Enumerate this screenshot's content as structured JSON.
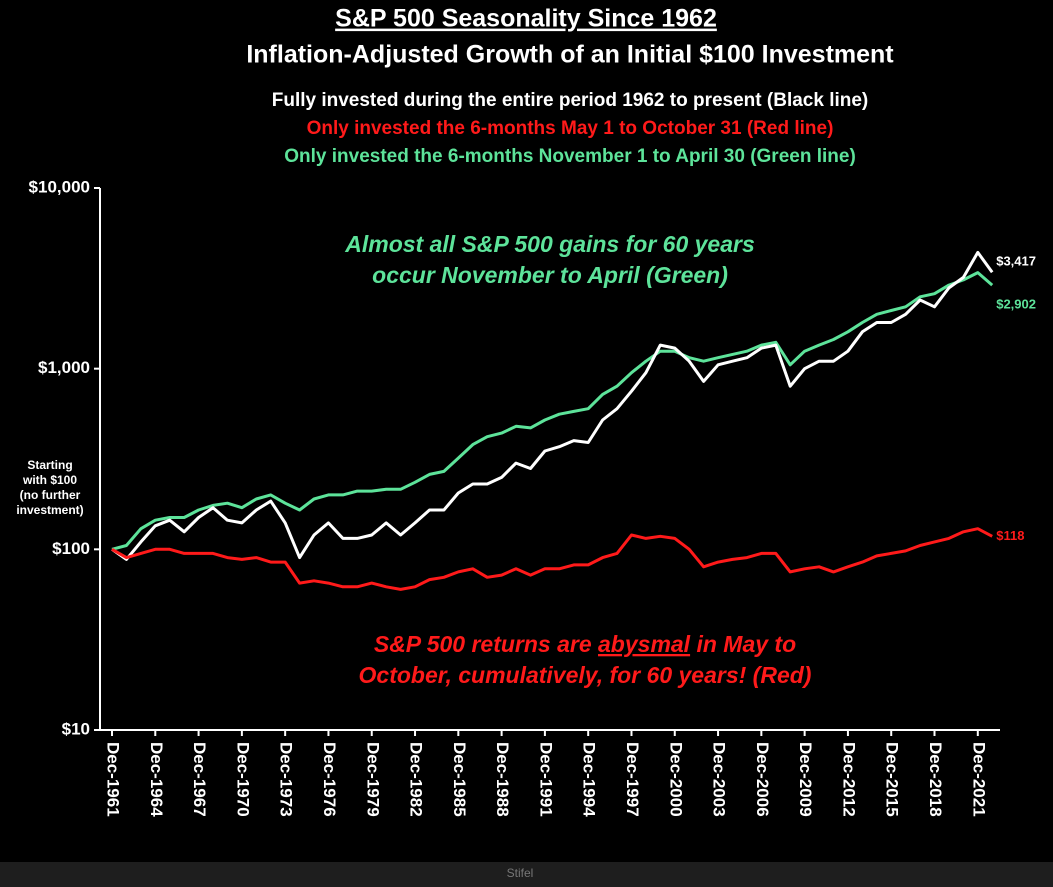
{
  "chart_data": {
    "type": "line",
    "title": "S&P 500 Seasonality Since 1962",
    "subtitle": "Inflation-Adjusted Growth of an Initial $100 Investment",
    "side_note": [
      "Starting",
      "with $100",
      "(no further",
      "investment)"
    ],
    "annotations": [
      {
        "color": "#5de39a",
        "lines": [
          [
            "Almost all S&P 500 gains for 60 years"
          ],
          [
            "occur November to April (Green)"
          ]
        ]
      },
      {
        "color": "#ff1a1a",
        "lines": [
          [
            "S&P 500 returns are ",
            "abysmal",
            " in May to"
          ],
          [
            "October, cumulatively, for 60 years! (Red)"
          ]
        ],
        "underline": [
          0,
          1
        ]
      }
    ],
    "footer": "Stifel",
    "log_scale": true,
    "ylim": [
      10,
      10000
    ],
    "yticks": [
      {
        "value": 10,
        "label": "$10"
      },
      {
        "value": 100,
        "label": "$100"
      },
      {
        "value": 1000,
        "label": "$1,000"
      },
      {
        "value": 10000,
        "label": "$10,000"
      }
    ],
    "categories": [
      "Dec-1961",
      null,
      null,
      "Dec-1964",
      null,
      null,
      "Dec-1967",
      null,
      null,
      "Dec-1970",
      null,
      null,
      "Dec-1973",
      null,
      null,
      "Dec-1976",
      null,
      null,
      "Dec-1979",
      null,
      null,
      "Dec-1982",
      null,
      null,
      "Dec-1985",
      null,
      null,
      "Dec-1988",
      null,
      null,
      "Dec-1991",
      null,
      null,
      "Dec-1994",
      null,
      null,
      "Dec-1997",
      null,
      null,
      "Dec-2000",
      null,
      null,
      "Dec-2003",
      null,
      null,
      "Dec-2006",
      null,
      null,
      "Dec-2009",
      null,
      null,
      "Dec-2012",
      null,
      null,
      "Dec-2015",
      null,
      null,
      "Dec-2018",
      null,
      null,
      "Dec-2021",
      null
    ],
    "series": [
      {
        "name": "Fully invested during the entire period 1962 to present (Black line)",
        "color": "#ffffff",
        "values": [
          100,
          88,
          110,
          135,
          145,
          125,
          150,
          170,
          145,
          140,
          165,
          185,
          140,
          90,
          120,
          140,
          115,
          115,
          120,
          140,
          120,
          140,
          165,
          165,
          205,
          230,
          230,
          250,
          300,
          280,
          350,
          370,
          400,
          390,
          520,
          600,
          750,
          950,
          1350,
          1300,
          1100,
          850,
          1050,
          1100,
          1150,
          1300,
          1350,
          800,
          1000,
          1100,
          1100,
          1250,
          1600,
          1800,
          1800,
          2000,
          2400,
          2200,
          2800,
          3200,
          4400,
          3417
        ],
        "value_labels": [
          null,
          null,
          null,
          null,
          null,
          null,
          null,
          null,
          null,
          null,
          null,
          null,
          null,
          null,
          null,
          null,
          null,
          null,
          null,
          null,
          null,
          null,
          null,
          null,
          null,
          null,
          null,
          null,
          null,
          null,
          null,
          null,
          null,
          null,
          null,
          null,
          null,
          null,
          null,
          null,
          null,
          null,
          null,
          null,
          null,
          null,
          null,
          null,
          null,
          null,
          null,
          null,
          null,
          null,
          null,
          null,
          null,
          null,
          null,
          null,
          null,
          "$3,417"
        ]
      },
      {
        "name": "Only invested the 6-months May 1 to October 31 (Red line)",
        "color": "#ff1a1a",
        "values": [
          100,
          90,
          95,
          100,
          100,
          95,
          95,
          95,
          90,
          88,
          90,
          85,
          85,
          65,
          67,
          65,
          62,
          62,
          65,
          62,
          60,
          62,
          68,
          70,
          75,
          78,
          70,
          72,
          78,
          72,
          78,
          78,
          82,
          82,
          90,
          95,
          120,
          115,
          118,
          115,
          100,
          80,
          85,
          88,
          90,
          95,
          95,
          75,
          78,
          80,
          75,
          80,
          85,
          92,
          95,
          98,
          105,
          110,
          115,
          125,
          130,
          118
        ],
        "value_labels": [
          null,
          null,
          null,
          null,
          null,
          null,
          null,
          null,
          null,
          null,
          null,
          null,
          null,
          null,
          null,
          null,
          null,
          null,
          null,
          null,
          null,
          null,
          null,
          null,
          null,
          null,
          null,
          null,
          null,
          null,
          null,
          null,
          null,
          null,
          null,
          null,
          null,
          null,
          null,
          null,
          null,
          null,
          null,
          null,
          null,
          null,
          null,
          null,
          null,
          null,
          null,
          null,
          null,
          null,
          null,
          null,
          null,
          null,
          null,
          null,
          null,
          "$118"
        ]
      },
      {
        "name": "Only invested the 6-months November 1 to April 30 (Green line)",
        "color": "#5de39a",
        "values": [
          100,
          105,
          130,
          145,
          150,
          150,
          165,
          175,
          180,
          170,
          190,
          200,
          180,
          165,
          190,
          200,
          200,
          210,
          210,
          215,
          215,
          235,
          260,
          270,
          320,
          380,
          420,
          440,
          480,
          470,
          520,
          560,
          580,
          600,
          720,
          800,
          950,
          1100,
          1250,
          1250,
          1150,
          1100,
          1150,
          1200,
          1250,
          1350,
          1400,
          1050,
          1250,
          1350,
          1450,
          1600,
          1800,
          2000,
          2100,
          2200,
          2500,
          2600,
          2900,
          3100,
          3400,
          2902
        ],
        "value_labels": [
          null,
          null,
          null,
          null,
          null,
          null,
          null,
          null,
          null,
          null,
          null,
          null,
          null,
          null,
          null,
          null,
          null,
          null,
          null,
          null,
          null,
          null,
          null,
          null,
          null,
          null,
          null,
          null,
          null,
          null,
          null,
          null,
          null,
          null,
          null,
          null,
          null,
          null,
          null,
          null,
          null,
          null,
          null,
          null,
          null,
          null,
          null,
          null,
          null,
          null,
          null,
          null,
          null,
          null,
          null,
          null,
          null,
          null,
          null,
          null,
          null,
          "$2,902"
        ]
      }
    ]
  }
}
